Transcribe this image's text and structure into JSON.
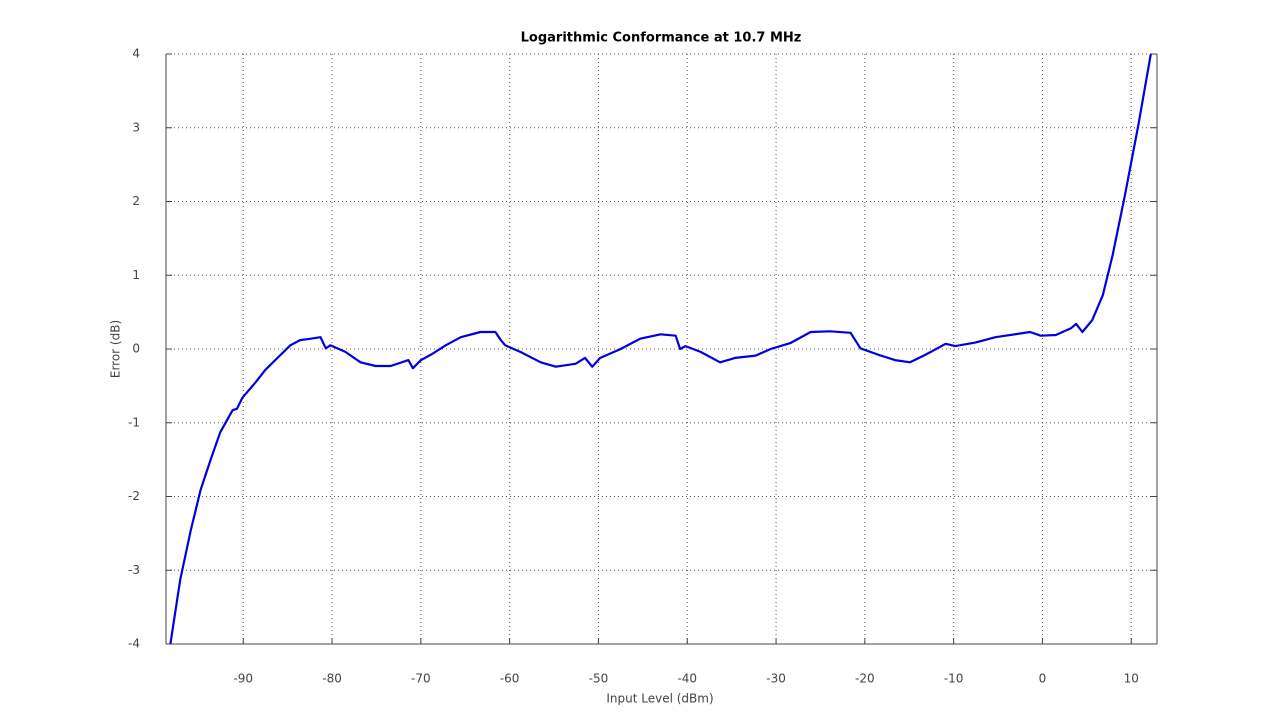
{
  "chart_data": {
    "type": "line",
    "title": "Logarithmic Conformance at 10.7 MHz",
    "x_label": "Input Level (dBm)",
    "y_label": "Error (dB)",
    "xlim": [
      -98.7,
      12.9
    ],
    "ylim": [
      -4,
      4
    ],
    "xticks": [
      -90,
      -80,
      -70,
      -60,
      -50,
      -40,
      -30,
      -20,
      -10,
      0,
      10
    ],
    "yticks": [
      -4,
      -3,
      -2,
      -1,
      0,
      1,
      2,
      3,
      4
    ],
    "grid": true,
    "series": [
      {
        "name": "Error",
        "color": "#0000e0",
        "x": [
          -98.2,
          -97.1,
          -95.9,
          -94.8,
          -93.7,
          -92.6,
          -91.2,
          -90.7,
          -90.1,
          -88.6,
          -87.5,
          -85.8,
          -84.7,
          -83.6,
          -82.4,
          -81.3,
          -80.7,
          -80.2,
          -78.5,
          -76.8,
          -75.1,
          -73.4,
          -71.4,
          -70.9,
          -70.0,
          -68.9,
          -67.2,
          -65.5,
          -63.3,
          -61.6,
          -61.0,
          -60.5,
          -58.8,
          -56.5,
          -54.8,
          -52.6,
          -51.5,
          -50.7,
          -49.8,
          -47.5,
          -45.3,
          -43.0,
          -41.3,
          -40.8,
          -40.2,
          -38.5,
          -36.3,
          -34.6,
          -32.3,
          -30.6,
          -28.4,
          -26.1,
          -23.9,
          -21.6,
          -20.5,
          -18.2,
          -16.6,
          -14.9,
          -13.2,
          -10.9,
          -9.8,
          -7.5,
          -5.3,
          -1.4,
          -0.2,
          1.5,
          3.2,
          3.8,
          4.5,
          5.6,
          6.8,
          7.9,
          9.3,
          10.8,
          12.2
        ],
        "values": [
          -4,
          -3.13,
          -2.45,
          -1.91,
          -1.51,
          -1.13,
          -0.83,
          -0.81,
          -0.66,
          -0.45,
          -0.28,
          -0.08,
          0.05,
          0.12,
          0.14,
          0.16,
          0.01,
          0.05,
          -0.04,
          -0.18,
          -0.23,
          -0.23,
          -0.15,
          -0.26,
          -0.15,
          -0.08,
          0.05,
          0.16,
          0.23,
          0.23,
          0.12,
          0.05,
          -0.04,
          -0.18,
          -0.24,
          -0.2,
          -0.12,
          -0.24,
          -0.12,
          0,
          0.14,
          0.2,
          0.18,
          0,
          0.04,
          -0.04,
          -0.18,
          -0.12,
          -0.09,
          0,
          0.08,
          0.23,
          0.24,
          0.22,
          0.01,
          -0.09,
          -0.15,
          -0.18,
          -0.08,
          0.07,
          0.04,
          0.09,
          0.16,
          0.23,
          0.18,
          0.19,
          0.28,
          0.34,
          0.23,
          0.39,
          0.73,
          1.27,
          2.09,
          3.04,
          4
        ]
      }
    ]
  }
}
